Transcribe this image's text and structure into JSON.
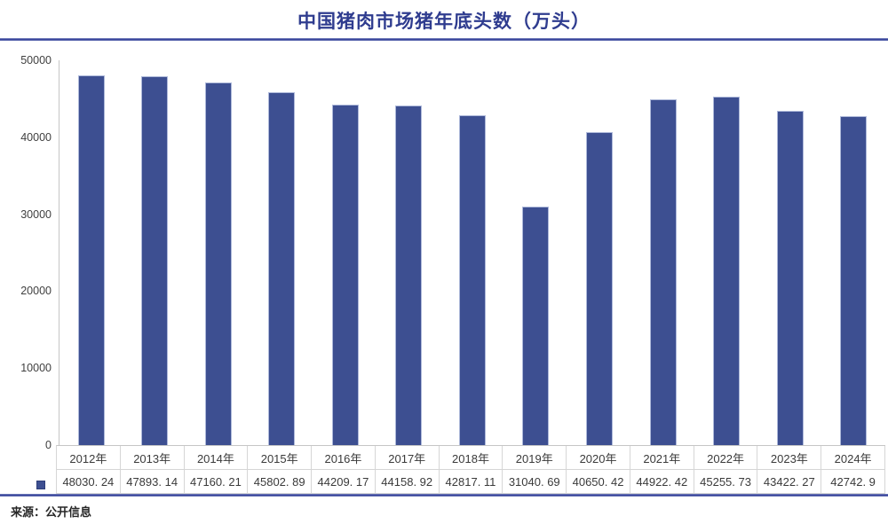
{
  "title": "中国猪肉市场猪年底头数（万头）",
  "source": "来源：公开信息",
  "colors": {
    "bar": "#3D4F91",
    "bar_border": "#aeb9da",
    "accent_line": "#39459B",
    "title_text": "#2F3C8F",
    "axis_text": "#3f3f3f",
    "table_border": "#d6d6d6"
  },
  "chart_data": {
    "type": "bar",
    "title": "中国猪肉市场猪年底头数（万头）",
    "xlabel": "",
    "ylabel": "",
    "categories": [
      "2012年",
      "2013年",
      "2014年",
      "2015年",
      "2016年",
      "2017年",
      "2018年",
      "2019年",
      "2020年",
      "2021年",
      "2022年",
      "2023年",
      "2024年"
    ],
    "values": [
      48030.24,
      47893.14,
      47160.21,
      45802.89,
      44209.17,
      44158.92,
      42817.11,
      31040.69,
      40650.42,
      44922.42,
      45255.73,
      43422.27,
      42742.9
    ],
    "value_labels": [
      "48030. 24",
      "47893. 14",
      "47160. 21",
      "45802. 89",
      "44209. 17",
      "44158. 92",
      "42817. 11",
      "31040. 69",
      "40650. 42",
      "44922. 42",
      "45255. 73",
      "43422. 27",
      "42742. 9"
    ],
    "ylim": [
      0,
      50000
    ],
    "yticks": [
      0,
      10000,
      20000,
      30000,
      40000,
      50000
    ],
    "grid": false,
    "legend_position": "data-table-left",
    "data_table_shown": true
  }
}
